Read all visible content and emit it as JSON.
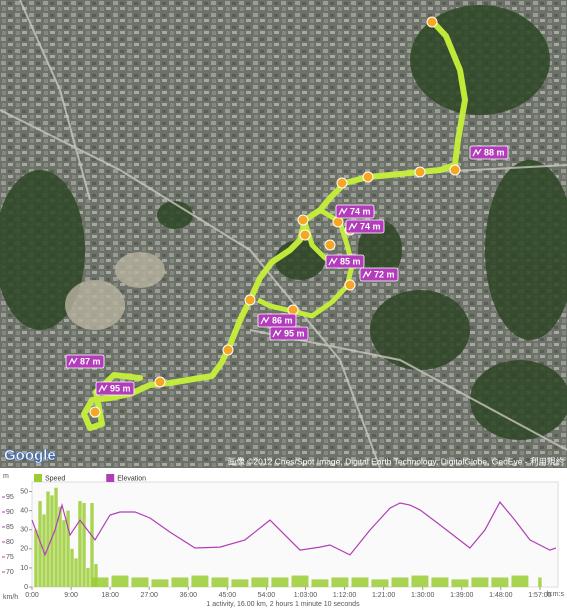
{
  "map": {
    "logo": "Google",
    "attribution": "画像 ©2012 Cnes/Spot Image, Digital Earth Technology, DigitalGlobe, GeoEye - 利用規約",
    "markers": [
      {
        "label": "88 m"
      },
      {
        "label": "74 m"
      },
      {
        "label": "74 m"
      },
      {
        "label": "85 m"
      },
      {
        "label": "72 m"
      },
      {
        "label": "86 m"
      },
      {
        "label": "95 m"
      },
      {
        "label": "87 m"
      },
      {
        "label": "95 m"
      }
    ]
  },
  "chart_data": {
    "type": "combo",
    "footer": "1 activity, 16.00 km, 2 hours 1 minute 10 seconds",
    "x_label": "h:m:s",
    "y_label": "km/h",
    "y2_label": "m",
    "xlim": [
      0,
      7270
    ],
    "xticks": [
      {
        "value": 0,
        "label": "0:00"
      },
      {
        "value": 540,
        "label": "9:00"
      },
      {
        "value": 1080,
        "label": "18:00"
      },
      {
        "value": 1620,
        "label": "27:00"
      },
      {
        "value": 2160,
        "label": "36:00"
      },
      {
        "value": 2700,
        "label": "45:00"
      },
      {
        "value": 3240,
        "label": "54:00"
      },
      {
        "value": 3780,
        "label": "1:03:00"
      },
      {
        "value": 4320,
        "label": "1:12:00"
      },
      {
        "value": 4860,
        "label": "1:21:00"
      },
      {
        "value": 5400,
        "label": "1:30:00"
      },
      {
        "value": 5940,
        "label": "1:39:00"
      },
      {
        "value": 6480,
        "label": "1:48:00"
      },
      {
        "value": 7020,
        "label": "1:57:00"
      }
    ],
    "ylim": [
      0,
      55
    ],
    "yticks": [
      0,
      10,
      20,
      30,
      40,
      50
    ],
    "y2lim": [
      65,
      100
    ],
    "y2ticks": [
      70,
      75,
      80,
      85,
      90,
      95
    ],
    "series": [
      {
        "name": "Speed",
        "color": "#9acd32",
        "kind": "bar",
        "x": [
          55,
          111,
          166,
          221,
          276,
          332,
          387,
          442,
          498,
          553,
          608,
          663,
          719,
          774,
          829,
          884,
          940,
          1216,
          1492,
          1769,
          2045,
          2321,
          2598,
          2874,
          3150,
          3427,
          3704,
          3980,
          4256,
          4533,
          4809,
          5086,
          5362,
          5638,
          5915,
          6191,
          6467,
          6744,
          7020
        ],
        "values": [
          30,
          45,
          38,
          50,
          48,
          52,
          42,
          35,
          40,
          20,
          15,
          45,
          44,
          10,
          44,
          12,
          5,
          6,
          5,
          4,
          5,
          6,
          5,
          4,
          5,
          5,
          6,
          4,
          5,
          5,
          4,
          5,
          6,
          5,
          4,
          5,
          5,
          6,
          5
        ]
      },
      {
        "name": "Elevation",
        "color": "#b03fb5",
        "kind": "line",
        "axis": "y2",
        "x": [
          0,
          180,
          318,
          415,
          525,
          663,
          871,
          1078,
          1216,
          1423,
          1631,
          1907,
          2253,
          2598,
          2944,
          3289,
          3497,
          3704,
          3980,
          4118,
          4395,
          4671,
          4948,
          5086,
          5224,
          5362,
          5638,
          6053,
          6260,
          6467,
          6674,
          6882,
          7158,
          7241
        ],
        "values": [
          87.3,
          75.7,
          84.0,
          92.3,
          82.3,
          87.3,
          80.7,
          89.0,
          90.0,
          90.0,
          88.0,
          83.3,
          78.0,
          78.3,
          80.7,
          87.3,
          82.3,
          77.3,
          78.3,
          79.0,
          75.7,
          84.0,
          91.3,
          93.0,
          92.3,
          90.7,
          85.7,
          78.0,
          84.0,
          93.3,
          87.3,
          80.7,
          77.3,
          78.0
        ]
      }
    ]
  }
}
